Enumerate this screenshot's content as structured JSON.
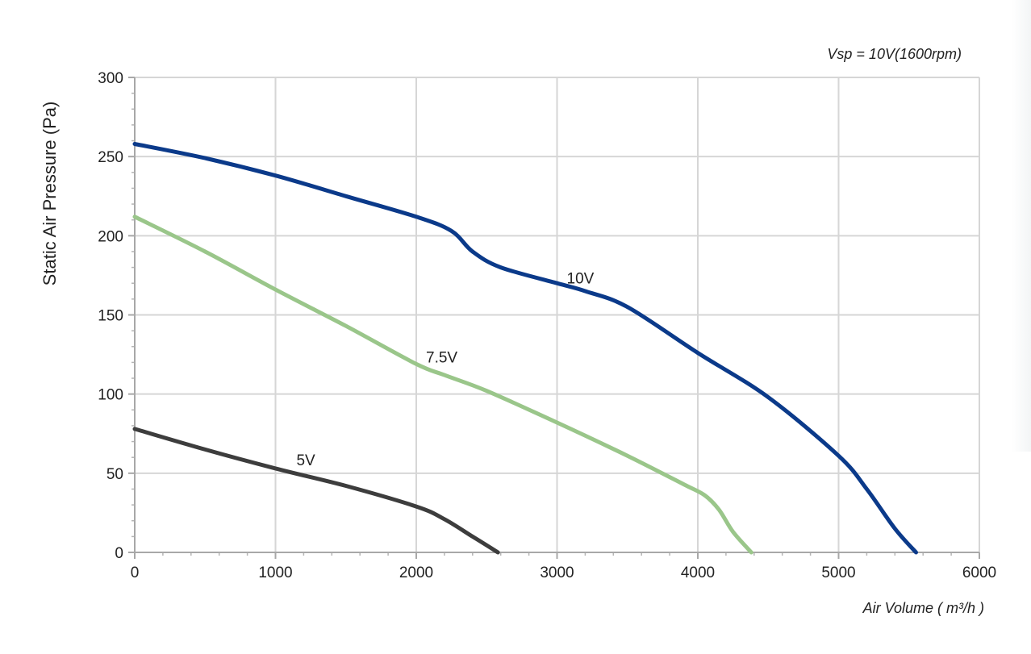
{
  "chart_data": {
    "type": "line",
    "annotation_top": "Vsp = 10V(1600rpm)",
    "xlabel": "Air Volume ( m³/h )",
    "ylabel": "Static Air Pressure  (Pa)",
    "xlim": [
      0,
      6000
    ],
    "ylim": [
      0,
      300
    ],
    "x_ticks": [
      0,
      1000,
      2000,
      3000,
      4000,
      5000,
      6000
    ],
    "y_ticks": [
      0,
      50,
      100,
      150,
      200,
      250,
      300
    ],
    "grid": true,
    "series": [
      {
        "name": "10V",
        "color": "#0b3a8a",
        "label_at": [
          3000,
          172
        ],
        "points": [
          [
            0,
            258
          ],
          [
            500,
            249
          ],
          [
            1000,
            238
          ],
          [
            1500,
            225
          ],
          [
            2000,
            212
          ],
          [
            2250,
            203
          ],
          [
            2400,
            190
          ],
          [
            2600,
            180
          ],
          [
            3000,
            170
          ],
          [
            3200,
            165
          ],
          [
            3500,
            155
          ],
          [
            4000,
            126
          ],
          [
            4500,
            98
          ],
          [
            5000,
            61
          ],
          [
            5200,
            40
          ],
          [
            5400,
            15
          ],
          [
            5550,
            0
          ]
        ]
      },
      {
        "name": "7.5V",
        "color": "#9ac68a",
        "label_at": [
          2000,
          122
        ],
        "points": [
          [
            0,
            212
          ],
          [
            500,
            190
          ],
          [
            1000,
            166
          ],
          [
            1500,
            143
          ],
          [
            2000,
            119
          ],
          [
            2200,
            112
          ],
          [
            2500,
            102
          ],
          [
            3000,
            82
          ],
          [
            3500,
            61
          ],
          [
            3900,
            43
          ],
          [
            4050,
            36
          ],
          [
            4150,
            27
          ],
          [
            4250,
            13
          ],
          [
            4380,
            0
          ]
        ]
      },
      {
        "name": "5V",
        "color": "#3d3d3d",
        "label_at": [
          1080,
          57
        ],
        "points": [
          [
            0,
            78
          ],
          [
            500,
            65
          ],
          [
            1000,
            53
          ],
          [
            1500,
            42
          ],
          [
            2000,
            29
          ],
          [
            2200,
            21
          ],
          [
            2400,
            10
          ],
          [
            2580,
            0
          ]
        ]
      }
    ]
  }
}
